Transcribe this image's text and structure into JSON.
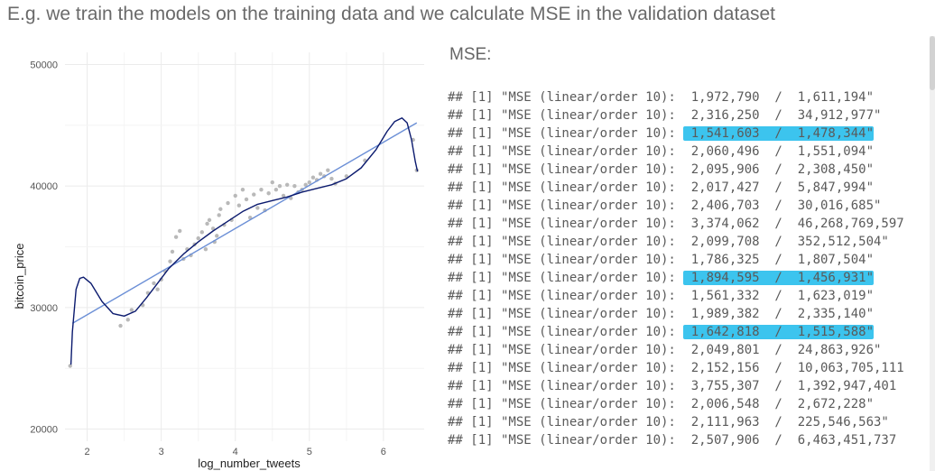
{
  "heading": "E.g. we train the models on the training data and we calculate MSE in the validation dataset",
  "chart_data": {
    "type": "scatter",
    "title": "",
    "xlabel": "log_number_tweets",
    "ylabel": "bitcoin_price",
    "xlim": [
      1.7,
      6.55
    ],
    "ylim": [
      19000,
      51000
    ],
    "x_ticks": [
      2,
      3,
      4,
      5,
      6
    ],
    "y_ticks": [
      20000,
      30000,
      40000,
      50000
    ],
    "x_tick_labels": [
      "2",
      "3",
      "4",
      "5",
      "6"
    ],
    "y_tick_labels": [
      "20000",
      "30000",
      "40000",
      "50000"
    ],
    "grid": true,
    "points": [
      [
        1.77,
        25200
      ],
      [
        2.45,
        28500
      ],
      [
        2.55,
        29000
      ],
      [
        2.6,
        29800
      ],
      [
        2.75,
        30200
      ],
      [
        2.82,
        31200
      ],
      [
        2.9,
        32000
      ],
      [
        2.95,
        31500
      ],
      [
        3.0,
        32300
      ],
      [
        3.05,
        33000
      ],
      [
        3.12,
        33800
      ],
      [
        3.15,
        34600
      ],
      [
        3.2,
        35800
      ],
      [
        3.25,
        36300
      ],
      [
        3.3,
        34000
      ],
      [
        3.35,
        34800
      ],
      [
        3.4,
        34300
      ],
      [
        3.45,
        35200
      ],
      [
        3.5,
        35700
      ],
      [
        3.55,
        36200
      ],
      [
        3.6,
        34800
      ],
      [
        3.62,
        36900
      ],
      [
        3.65,
        37200
      ],
      [
        3.7,
        36500
      ],
      [
        3.72,
        35400
      ],
      [
        3.75,
        35900
      ],
      [
        3.78,
        37600
      ],
      [
        3.8,
        38100
      ],
      [
        3.85,
        36800
      ],
      [
        3.9,
        38600
      ],
      [
        3.95,
        37200
      ],
      [
        4.0,
        39200
      ],
      [
        4.05,
        38400
      ],
      [
        4.1,
        39700
      ],
      [
        4.15,
        38900
      ],
      [
        4.2,
        37400
      ],
      [
        4.25,
        39300
      ],
      [
        4.3,
        38200
      ],
      [
        4.35,
        39700
      ],
      [
        4.4,
        38000
      ],
      [
        4.45,
        39400
      ],
      [
        4.5,
        40300
      ],
      [
        4.55,
        39700
      ],
      [
        4.6,
        40000
      ],
      [
        4.65,
        39200
      ],
      [
        4.7,
        40100
      ],
      [
        4.75,
        39000
      ],
      [
        4.8,
        40000
      ],
      [
        4.85,
        39500
      ],
      [
        4.9,
        39700
      ],
      [
        4.95,
        40100
      ],
      [
        5.0,
        40300
      ],
      [
        5.05,
        40700
      ],
      [
        5.1,
        40500
      ],
      [
        5.15,
        41000
      ],
      [
        5.2,
        40800
      ],
      [
        5.25,
        41300
      ],
      [
        5.3,
        40600
      ],
      [
        5.35,
        40200
      ],
      [
        5.5,
        40800
      ],
      [
        5.75,
        42100
      ],
      [
        6.4,
        43800
      ],
      [
        6.45,
        41300
      ]
    ],
    "series": [
      {
        "type": "linear",
        "points": [
          [
            1.8,
            28700
          ],
          [
            6.45,
            45200
          ]
        ],
        "color": "#6b8fd6"
      },
      {
        "type": "polynomial",
        "points": [
          [
            1.78,
            25300
          ],
          [
            1.8,
            28000
          ],
          [
            1.85,
            31500
          ],
          [
            1.9,
            32400
          ],
          [
            1.95,
            32500
          ],
          [
            2.05,
            32000
          ],
          [
            2.2,
            30500
          ],
          [
            2.35,
            29500
          ],
          [
            2.5,
            29300
          ],
          [
            2.65,
            29700
          ],
          [
            2.8,
            30800
          ],
          [
            2.95,
            32000
          ],
          [
            3.1,
            33200
          ],
          [
            3.3,
            34400
          ],
          [
            3.5,
            35400
          ],
          [
            3.7,
            36300
          ],
          [
            3.9,
            37100
          ],
          [
            4.1,
            37900
          ],
          [
            4.3,
            38500
          ],
          [
            4.5,
            38800
          ],
          [
            4.7,
            39100
          ],
          [
            4.9,
            39500
          ],
          [
            5.1,
            39800
          ],
          [
            5.3,
            40100
          ],
          [
            5.5,
            40600
          ],
          [
            5.7,
            41500
          ],
          [
            5.9,
            43000
          ],
          [
            6.05,
            44500
          ],
          [
            6.15,
            45300
          ],
          [
            6.25,
            45600
          ],
          [
            6.32,
            45200
          ],
          [
            6.38,
            43800
          ],
          [
            6.43,
            42000
          ],
          [
            6.46,
            41200
          ]
        ],
        "color": "#0b1a6e"
      }
    ],
    "point_color": "#b9b9b9"
  },
  "mse_title": "MSE:",
  "console": {
    "prefix": "## [1] \"MSE (linear/order 10):  ",
    "rows": [
      {
        "a": "1,972,790",
        "b": "1,611,194\"",
        "highlight": false
      },
      {
        "a": "2,316,250",
        "b": "34,912,977\"",
        "highlight": false
      },
      {
        "a": "1,541,603",
        "b": "1,478,344\"",
        "highlight": true
      },
      {
        "a": "2,060,496",
        "b": "1,551,094\"",
        "highlight": false
      },
      {
        "a": "2,095,906",
        "b": "2,308,450\"",
        "highlight": false
      },
      {
        "a": "2,017,427",
        "b": "5,847,994\"",
        "highlight": false
      },
      {
        "a": "2,406,703",
        "b": "30,016,685\"",
        "highlight": false
      },
      {
        "a": "3,374,062",
        "b": "46,268,769,597",
        "highlight": false
      },
      {
        "a": "2,099,708",
        "b": "352,512,504\"",
        "highlight": false
      },
      {
        "a": "1,786,325",
        "b": "1,807,504\"",
        "highlight": false
      },
      {
        "a": "1,894,595",
        "b": "1,456,931\"",
        "highlight": true
      },
      {
        "a": "1,561,332",
        "b": "1,623,019\"",
        "highlight": false
      },
      {
        "a": "1,989,382",
        "b": "2,335,140\"",
        "highlight": false
      },
      {
        "a": "1,642,818",
        "b": "1,515,588\"",
        "highlight": true
      },
      {
        "a": "2,049,801",
        "b": "24,863,926\"",
        "highlight": false
      },
      {
        "a": "2,152,156",
        "b": "10,063,705,111",
        "highlight": false
      },
      {
        "a": "3,755,307",
        "b": "1,392,947,401",
        "highlight": false
      },
      {
        "a": "2,006,548",
        "b": "2,672,228\"",
        "highlight": false
      },
      {
        "a": "2,111,963",
        "b": "225,546,563\"",
        "highlight": false
      },
      {
        "a": "2,507,906",
        "b": "6,463,451,737",
        "highlight": false
      }
    ]
  }
}
